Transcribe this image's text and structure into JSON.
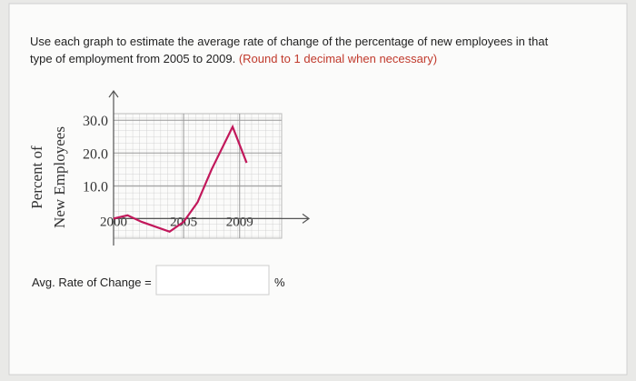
{
  "question": {
    "text": "Use each graph to estimate the average rate of change of the percentage of new employees in that",
    "text_line2": "type of employment from 2005 to 2009.",
    "hint": "(Round to 1 decimal when necessary)"
  },
  "chart_data": {
    "type": "line",
    "ylabel": [
      "Percent of",
      "New Employees"
    ],
    "x": [
      2000,
      2001,
      2002,
      2004,
      2005,
      2006,
      2007,
      2008.5,
      2009.5
    ],
    "series": [
      {
        "name": "Employees",
        "color": "#c2185b",
        "values": [
          0,
          1,
          -1,
          -4,
          -1,
          5,
          15,
          28,
          17
        ]
      }
    ],
    "xlim": [
      2000,
      2012
    ],
    "xticks": [
      2000,
      2005,
      2009
    ],
    "ylim": [
      -6,
      32
    ],
    "yticks": [
      {
        "value": 10,
        "label": "10.0"
      },
      {
        "value": 20,
        "label": "20.0"
      },
      {
        "value": 30,
        "label": "30.0"
      }
    ],
    "grid": true
  },
  "answer": {
    "label": "Avg. Rate of Change =",
    "unit": "%"
  }
}
